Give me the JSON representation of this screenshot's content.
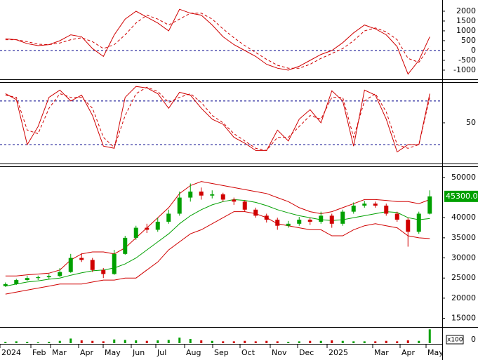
{
  "chart_data": {
    "type": "candlestick",
    "months": [
      "2024",
      "Feb",
      "Mar",
      "Apr",
      "May",
      "Jun",
      "Jul",
      "Aug",
      "Sep",
      "Oct",
      "Nov",
      "Dec",
      "2025",
      "Mar",
      "Apr",
      "May"
    ],
    "macd": {
      "ylim": [
        -1430,
        2570
      ],
      "yticks": [
        2000,
        1500,
        1000,
        500,
        0,
        -500,
        -1000
      ],
      "zero_color": "#00008b",
      "color": "#d00000",
      "macd": [
        600,
        550,
        350,
        250,
        300,
        500,
        800,
        700,
        100,
        -300,
        800,
        1600,
        2000,
        1700,
        1400,
        1000,
        2100,
        1900,
        1800,
        1300,
        700,
        300,
        0,
        -300,
        -700,
        -900,
        -1000,
        -800,
        -500,
        -200,
        0,
        400,
        900,
        1300,
        1100,
        800,
        200,
        -1200,
        -500,
        700
      ],
      "signal": [
        550,
        550,
        450,
        320,
        300,
        380,
        550,
        650,
        450,
        100,
        300,
        800,
        1400,
        1800,
        1600,
        1300,
        1600,
        1900,
        1900,
        1600,
        1100,
        650,
        250,
        -100,
        -450,
        -750,
        -900,
        -900,
        -700,
        -400,
        -150,
        100,
        500,
        1000,
        1150,
        950,
        550,
        -400,
        -600,
        200
      ]
    },
    "stochastic": {
      "ylim": [
        -5,
        105
      ],
      "yticks": [
        50
      ],
      "levels": [
        80,
        20
      ],
      "color": "#d00000",
      "k": [
        90,
        82,
        20,
        45,
        85,
        95,
        80,
        88,
        60,
        18,
        15,
        85,
        100,
        98,
        90,
        70,
        92,
        88,
        70,
        55,
        48,
        30,
        22,
        12,
        12,
        40,
        25,
        55,
        68,
        50,
        94,
        80,
        18,
        95,
        88,
        55,
        10,
        20,
        20,
        90
      ],
      "d": [
        88,
        85,
        40,
        35,
        70,
        90,
        85,
        85,
        70,
        30,
        16,
        60,
        90,
        99,
        93,
        78,
        85,
        90,
        78,
        60,
        50,
        35,
        25,
        15,
        12,
        30,
        30,
        45,
        60,
        55,
        85,
        85,
        30,
        80,
        90,
        65,
        20,
        15,
        20,
        85
      ]
    },
    "price": {
      "ylim": [
        13000,
        52600
      ],
      "yticks": [
        50000,
        40000,
        35000,
        30000,
        25000,
        20000,
        15000
      ],
      "last_price": {
        "value": 45300,
        "label": "45300.00"
      },
      "up_color": "#00a000",
      "down_color": "#d00000",
      "band_color": "#d00000",
      "ma_color": "#00a000",
      "candles": [
        [
          23000,
          23900,
          22800,
          23500
        ],
        [
          23500,
          24800,
          23300,
          24500
        ],
        [
          24500,
          25600,
          24300,
          25000
        ],
        [
          25000,
          25600,
          24500,
          25200
        ],
        [
          25200,
          26000,
          24800,
          25500
        ],
        [
          25500,
          27500,
          25200,
          26500
        ],
        [
          26500,
          31000,
          26300,
          30000
        ],
        [
          30000,
          31200,
          29000,
          29500
        ],
        [
          29500,
          30000,
          26500,
          27000
        ],
        [
          27000,
          27500,
          25000,
          26000
        ],
        [
          26000,
          32000,
          25800,
          31000
        ],
        [
          31000,
          35500,
          30800,
          35000
        ],
        [
          35000,
          38000,
          34500,
          37500
        ],
        [
          37500,
          38500,
          36200,
          37000
        ],
        [
          37000,
          40000,
          36500,
          39000
        ],
        [
          39000,
          42000,
          38500,
          41000
        ],
        [
          41000,
          46500,
          40500,
          45000
        ],
        [
          45000,
          48500,
          44000,
          46500
        ],
        [
          46500,
          47500,
          44500,
          45500
        ],
        [
          45500,
          46800,
          44800,
          45800
        ],
        [
          45800,
          46200,
          44000,
          44500
        ],
        [
          44500,
          45000,
          43200,
          44000
        ],
        [
          44000,
          44300,
          41500,
          42000
        ],
        [
          42000,
          42500,
          40000,
          40500
        ],
        [
          40500,
          41000,
          38800,
          39500
        ],
        [
          39500,
          40000,
          37000,
          38000
        ],
        [
          38000,
          39200,
          37500,
          38500
        ],
        [
          38500,
          40200,
          38000,
          39500
        ],
        [
          39500,
          40000,
          38200,
          39000
        ],
        [
          39000,
          41500,
          38500,
          40500
        ],
        [
          40500,
          41000,
          37500,
          38500
        ],
        [
          38500,
          42000,
          38000,
          41500
        ],
        [
          41500,
          43800,
          41000,
          43000
        ],
        [
          43000,
          44200,
          42500,
          43500
        ],
        [
          43500,
          44000,
          42500,
          43000
        ],
        [
          43000,
          43500,
          40500,
          41000
        ],
        [
          41000,
          41500,
          39000,
          39500
        ],
        [
          39500,
          40000,
          32800,
          36500
        ],
        [
          36500,
          41500,
          36000,
          41000
        ],
        [
          41000,
          46800,
          40800,
          45300
        ]
      ],
      "ma": [
        23000,
        23500,
        24000,
        24300,
        24700,
        25000,
        25700,
        26300,
        26800,
        27000,
        27500,
        28500,
        30000,
        32000,
        34000,
        36000,
        38500,
        40500,
        42000,
        43200,
        44000,
        44500,
        44300,
        43800,
        43000,
        42000,
        41200,
        40500,
        40000,
        39500,
        39300,
        39500,
        40000,
        40500,
        41000,
        41500,
        41300,
        40000,
        39500,
        39800
      ],
      "upper": [
        25500,
        25500,
        25800,
        26000,
        26200,
        27000,
        29500,
        31000,
        31500,
        31500,
        31000,
        32500,
        35000,
        37500,
        40000,
        42500,
        46000,
        48000,
        49000,
        48500,
        48000,
        47500,
        47000,
        46500,
        46000,
        45000,
        44000,
        42500,
        41500,
        41000,
        41500,
        42500,
        43500,
        44500,
        44500,
        44300,
        44000,
        44000,
        43500,
        44500
      ],
      "lower": [
        21000,
        21500,
        22000,
        22500,
        23000,
        23500,
        23500,
        23500,
        24000,
        24500,
        24500,
        25000,
        25000,
        27000,
        29000,
        32000,
        34000,
        36000,
        37000,
        38500,
        40000,
        41500,
        41500,
        41000,
        40000,
        38500,
        38000,
        37500,
        37000,
        37000,
        35500,
        35500,
        37000,
        38000,
        38500,
        38000,
        37500,
        35500,
        35000,
        34800
      ]
    },
    "volume": {
      "ylim": [
        0,
        32
      ],
      "yticks": [
        0
      ],
      "unit": "x100",
      "values": [
        3,
        4,
        3,
        2,
        3,
        5,
        10,
        6,
        5,
        4,
        8,
        7,
        6,
        5,
        6,
        7,
        12,
        9,
        6,
        5,
        4,
        4,
        5,
        4,
        5,
        4,
        3,
        4,
        5,
        5,
        6,
        5,
        4,
        4,
        4,
        5,
        4,
        6,
        5,
        30
      ]
    }
  }
}
